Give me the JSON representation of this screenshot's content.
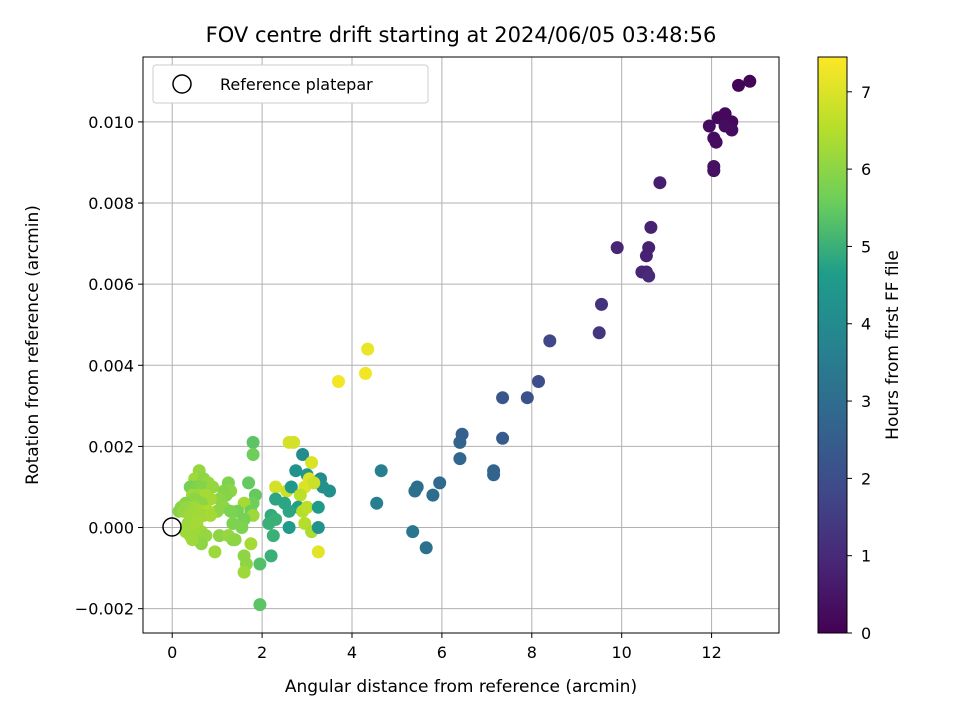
{
  "chart_data": {
    "type": "scatter",
    "title": "FOV centre drift starting at 2024/06/05 03:48:56",
    "xlabel": "Angular distance from reference (arcmin)",
    "ylabel": "Rotation from reference (arcmin)",
    "colorbar_label": "Hours from first FF file",
    "colormap": "viridis",
    "xlim": [
      -0.65,
      13.5
    ],
    "ylim": [
      -0.0026,
      0.0116
    ],
    "clim": [
      0,
      7.45
    ],
    "xticks": [
      0,
      2,
      4,
      6,
      8,
      10,
      12
    ],
    "yticks": [
      -0.002,
      0.0,
      0.002,
      0.004,
      0.006,
      0.008,
      0.01
    ],
    "ytick_labels": [
      "−0.002",
      "0.000",
      "0.002",
      "0.004",
      "0.006",
      "0.008",
      "0.010"
    ],
    "colorbar_ticks": [
      0,
      1,
      2,
      3,
      4,
      5,
      6,
      7
    ],
    "grid": true,
    "legend": {
      "label": "Reference platepar",
      "placement": "top-left"
    },
    "reference_point": {
      "x": 0,
      "y": 0
    },
    "points": [
      [
        12.85,
        0.011,
        0.1
      ],
      [
        12.6,
        0.0109,
        0.1
      ],
      [
        12.3,
        0.0102,
        0.2
      ],
      [
        12.15,
        0.0101,
        0.2
      ],
      [
        12.45,
        0.01,
        0.2
      ],
      [
        11.95,
        0.0099,
        0.3
      ],
      [
        12.3,
        0.0099,
        0.3
      ],
      [
        12.45,
        0.0098,
        0.3
      ],
      [
        12.05,
        0.0096,
        0.3
      ],
      [
        12.1,
        0.0095,
        0.3
      ],
      [
        12.05,
        0.0089,
        0.4
      ],
      [
        12.05,
        0.0088,
        0.4
      ],
      [
        10.85,
        0.0085,
        0.7
      ],
      [
        10.65,
        0.0074,
        0.8
      ],
      [
        9.9,
        0.0069,
        0.9
      ],
      [
        10.6,
        0.0069,
        0.8
      ],
      [
        10.55,
        0.0067,
        0.8
      ],
      [
        10.45,
        0.0063,
        0.9
      ],
      [
        10.55,
        0.0063,
        0.9
      ],
      [
        10.6,
        0.0062,
        1.0
      ],
      [
        9.55,
        0.0055,
        1.2
      ],
      [
        9.5,
        0.0048,
        1.3
      ],
      [
        8.4,
        0.0046,
        1.8
      ],
      [
        8.15,
        0.0036,
        2.0
      ],
      [
        7.35,
        0.0032,
        2.2
      ],
      [
        7.9,
        0.0032,
        2.1
      ],
      [
        6.45,
        0.0023,
        2.6
      ],
      [
        6.4,
        0.0021,
        2.7
      ],
      [
        7.35,
        0.0022,
        2.4
      ],
      [
        6.4,
        0.0017,
        2.8
      ],
      [
        7.15,
        0.0014,
        2.7
      ],
      [
        7.15,
        0.0013,
        2.7
      ],
      [
        5.95,
        0.0011,
        2.9
      ],
      [
        5.45,
        0.001,
        3.0
      ],
      [
        5.8,
        0.0008,
        3.0
      ],
      [
        5.4,
        0.0009,
        3.1
      ],
      [
        4.65,
        0.0014,
        3.6
      ],
      [
        4.55,
        0.0006,
        3.6
      ],
      [
        5.35,
        -0.0001,
        3.3
      ],
      [
        5.65,
        -0.0005,
        3.1
      ],
      [
        3.7,
        0.0036,
        7.3
      ],
      [
        4.3,
        0.0038,
        7.3
      ],
      [
        4.35,
        0.0044,
        7.2
      ],
      [
        1.8,
        0.0021,
        5.4
      ],
      [
        1.8,
        0.0018,
        5.6
      ],
      [
        2.6,
        0.0021,
        6.9
      ],
      [
        2.7,
        0.0021,
        6.9
      ],
      [
        2.9,
        0.0018,
        4.1
      ],
      [
        3.1,
        0.0016,
        7.0
      ],
      [
        2.75,
        0.0014,
        4.3
      ],
      [
        3.0,
        0.0013,
        4.4
      ],
      [
        3.05,
        0.0012,
        7.0
      ],
      [
        3.3,
        0.0012,
        4.1
      ],
      [
        3.35,
        0.001,
        4.2
      ],
      [
        3.5,
        0.0009,
        4.2
      ],
      [
        2.95,
        0.001,
        7.0
      ],
      [
        3.15,
        0.0011,
        6.8
      ],
      [
        2.3,
        0.001,
        6.9
      ],
      [
        2.55,
        0.0009,
        6.8
      ],
      [
        2.65,
        0.001,
        4.5
      ],
      [
        2.85,
        0.0008,
        6.6
      ],
      [
        2.3,
        0.0007,
        4.8
      ],
      [
        2.5,
        0.0006,
        4.8
      ],
      [
        2.8,
        0.0005,
        4.7
      ],
      [
        2.6,
        0.0004,
        4.8
      ],
      [
        2.9,
        0.0004,
        6.5
      ],
      [
        3.0,
        0.0005,
        6.6
      ],
      [
        3.25,
        0.0005,
        4.6
      ],
      [
        2.2,
        0.0003,
        4.9
      ],
      [
        2.3,
        0.0002,
        5.0
      ],
      [
        2.15,
        0.0001,
        5.0
      ],
      [
        2.95,
        0.0001,
        6.5
      ],
      [
        3.1,
        -0.0001,
        6.4
      ],
      [
        2.6,
        0.0,
        4.6
      ],
      [
        3.25,
        0.0,
        4.3
      ],
      [
        2.25,
        -0.0002,
        5.0
      ],
      [
        2.2,
        -0.0007,
        5.0
      ],
      [
        1.95,
        -0.0009,
        5.3
      ],
      [
        1.95,
        -0.0019,
        5.4
      ],
      [
        3.25,
        -0.0006,
        7.1
      ],
      [
        1.7,
        0.0011,
        5.5
      ],
      [
        1.85,
        0.0008,
        5.5
      ],
      [
        1.8,
        0.0006,
        5.6
      ],
      [
        1.6,
        0.0006,
        6.3
      ],
      [
        1.75,
        0.0004,
        5.6
      ],
      [
        1.8,
        0.0003,
        6.2
      ],
      [
        1.6,
        0.0002,
        5.7
      ],
      [
        1.45,
        0.0004,
        5.7
      ],
      [
        1.55,
        0.0,
        5.8
      ],
      [
        1.35,
        0.0001,
        5.8
      ],
      [
        1.35,
        -0.0003,
        5.8
      ],
      [
        1.75,
        -0.0004,
        6.3
      ],
      [
        1.6,
        -0.0007,
        6.0
      ],
      [
        1.65,
        -0.0009,
        6.0
      ],
      [
        1.6,
        -0.0011,
        6.2
      ],
      [
        1.25,
        0.0011,
        5.8
      ],
      [
        1.3,
        0.0009,
        6.0
      ],
      [
        1.15,
        0.0009,
        5.9
      ],
      [
        1.2,
        0.0008,
        5.9
      ],
      [
        1.05,
        0.0007,
        6.0
      ],
      [
        1.15,
        0.0005,
        6.0
      ],
      [
        1.0,
        0.0004,
        6.0
      ],
      [
        1.3,
        0.0004,
        5.8
      ],
      [
        1.05,
        -0.0002,
        6.0
      ],
      [
        1.25,
        -0.0002,
        6.1
      ],
      [
        1.4,
        -0.0003,
        6.0
      ],
      [
        0.95,
        -0.0006,
        6.2
      ],
      [
        0.6,
        0.0014,
        6.1
      ],
      [
        0.5,
        0.0012,
        6.2
      ],
      [
        0.7,
        0.0012,
        6.0
      ],
      [
        0.8,
        0.0011,
        6.1
      ],
      [
        0.4,
        0.001,
        5.7
      ],
      [
        0.55,
        0.001,
        5.8
      ],
      [
        0.65,
        0.001,
        5.9
      ],
      [
        0.9,
        0.001,
        6.1
      ],
      [
        0.45,
        0.0008,
        6.2
      ],
      [
        0.6,
        0.0008,
        6.2
      ],
      [
        0.75,
        0.0008,
        6.3
      ],
      [
        0.85,
        0.0007,
        6.3
      ],
      [
        0.5,
        0.0007,
        6.0
      ],
      [
        0.65,
        0.0006,
        6.0
      ],
      [
        0.3,
        0.0006,
        5.9
      ],
      [
        0.2,
        0.0005,
        6.0
      ],
      [
        0.35,
        0.0005,
        6.1
      ],
      [
        0.5,
        0.0005,
        6.2
      ],
      [
        0.65,
        0.0004,
        6.3
      ],
      [
        0.8,
        0.0004,
        6.4
      ],
      [
        0.15,
        0.0004,
        5.9
      ],
      [
        0.25,
        0.0004,
        6.1
      ],
      [
        0.4,
        0.0003,
        6.2
      ],
      [
        0.7,
        0.0003,
        6.2
      ],
      [
        0.85,
        0.0003,
        6.3
      ],
      [
        0.55,
        0.0002,
        6.3
      ],
      [
        0.35,
        0.0001,
        6.2
      ],
      [
        0.55,
        0.0001,
        6.3
      ],
      [
        0.3,
        -0.0001,
        6.2
      ],
      [
        0.45,
        -0.0001,
        6.3
      ],
      [
        0.65,
        -0.0001,
        6.2
      ],
      [
        0.75,
        -0.0002,
        6.1
      ],
      [
        0.4,
        -0.0002,
        6.2
      ],
      [
        0.55,
        -0.0003,
        6.1
      ],
      [
        0.65,
        -0.0004,
        6.0
      ],
      [
        0.45,
        -0.0003,
        6.2
      ]
    ]
  }
}
